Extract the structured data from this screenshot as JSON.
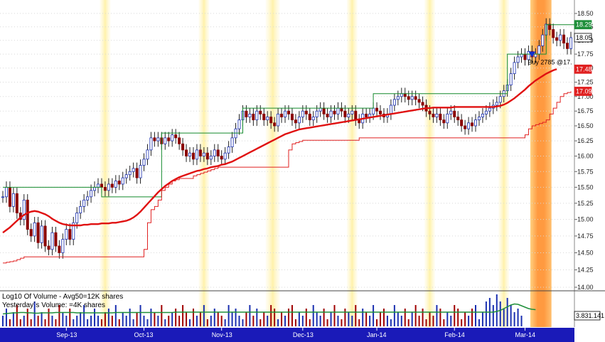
{
  "chart_data": {
    "type": "candlestick",
    "price_axis": {
      "scale": "log",
      "ylim": [
        14.0,
        18.62
      ],
      "ticks": [
        "18.50",
        "18.25",
        "18.00",
        "17.75",
        "17.50",
        "17.25",
        "17.00",
        "16.75",
        "16.50",
        "16.25",
        "16.00",
        "15.75",
        "15.50",
        "15.25",
        "15.00",
        "14.75",
        "14.50",
        "14.25",
        "14.00"
      ],
      "tick_values": [
        18.5,
        18.25,
        18.0,
        17.75,
        17.5,
        17.25,
        17.0,
        16.75,
        16.5,
        16.25,
        16.0,
        15.75,
        15.5,
        15.25,
        15.0,
        14.75,
        14.5,
        14.25,
        14.0
      ]
    },
    "months": [
      {
        "label": "Sep-13",
        "index": 18
      },
      {
        "label": "Oct-13",
        "index": 40
      },
      {
        "label": "Nov-13",
        "index": 62
      },
      {
        "label": "Dec-13",
        "index": 85
      },
      {
        "label": "Jan-14",
        "index": 106
      },
      {
        "label": "Feb-14",
        "index": 128
      },
      {
        "label": "Mar-14",
        "index": 148
      }
    ],
    "closes": [
      15.35,
      15.5,
      15.2,
      15.4,
      15.1,
      15.0,
      15.3,
      14.85,
      14.75,
      14.95,
      14.65,
      14.9,
      14.6,
      14.55,
      14.8,
      14.6,
      14.5,
      14.7,
      14.85,
      14.7,
      14.95,
      15.1,
      15.2,
      15.3,
      15.35,
      15.45,
      15.5,
      15.55,
      15.5,
      15.45,
      15.55,
      15.5,
      15.6,
      15.55,
      15.65,
      15.7,
      15.75,
      15.8,
      15.65,
      15.85,
      15.95,
      16.1,
      16.3,
      16.25,
      16.3,
      16.2,
      16.3,
      16.25,
      16.35,
      16.3,
      16.2,
      16.1,
      16.0,
      16.05,
      15.95,
      16.1,
      16.0,
      16.05,
      15.95,
      16.0,
      16.1,
      16.0,
      15.95,
      16.05,
      16.15,
      16.3,
      16.45,
      16.6,
      16.75,
      16.65,
      16.7,
      16.6,
      16.75,
      16.7,
      16.6,
      16.65,
      16.55,
      16.5,
      16.7,
      16.65,
      16.75,
      16.7,
      16.6,
      16.55,
      16.65,
      16.75,
      16.7,
      16.6,
      16.65,
      16.75,
      16.8,
      16.7,
      16.65,
      16.75,
      16.7,
      16.8,
      16.75,
      16.65,
      16.7,
      16.75,
      16.6,
      16.55,
      16.7,
      16.65,
      16.7,
      16.8,
      16.75,
      16.7,
      16.65,
      16.7,
      16.85,
      16.95,
      17.0,
      17.05,
      17.0,
      16.95,
      17.0,
      16.95,
      16.9,
      16.85,
      16.75,
      16.7,
      16.65,
      16.7,
      16.6,
      16.55,
      16.7,
      16.75,
      16.65,
      16.6,
      16.5,
      16.45,
      16.55,
      16.5,
      16.6,
      16.65,
      16.7,
      16.75,
      16.8,
      16.85,
      16.9,
      17.0,
      17.1,
      17.2,
      17.4,
      17.6,
      17.7,
      17.75,
      17.65,
      17.8,
      17.7,
      17.75,
      17.9,
      18.1,
      18.3,
      18.2,
      18.05,
      18.0,
      18.1,
      17.95,
      17.85,
      18.05
    ],
    "ma_red": [
      14.8,
      14.84,
      14.88,
      14.93,
      14.98,
      15.03,
      15.07,
      15.1,
      15.12,
      15.13,
      15.12,
      15.1,
      15.08,
      15.05,
      15.01,
      14.98,
      14.95,
      14.93,
      14.92,
      14.91,
      14.91,
      14.91,
      14.91,
      14.92,
      14.92,
      14.93,
      14.93,
      14.93,
      14.94,
      14.94,
      14.94,
      14.95,
      14.95,
      14.96,
      14.97,
      14.98,
      15.0,
      15.03,
      15.07,
      15.12,
      15.18,
      15.24,
      15.3,
      15.36,
      15.42,
      15.47,
      15.52,
      15.56,
      15.6,
      15.63,
      15.66,
      15.68,
      15.7,
      15.72,
      15.74,
      15.76,
      15.77,
      15.79,
      15.8,
      15.82,
      15.83,
      15.84,
      15.86,
      15.87,
      15.89,
      15.91,
      15.94,
      15.97,
      16.0,
      16.03,
      16.06,
      16.09,
      16.12,
      16.15,
      16.18,
      16.21,
      16.24,
      16.27,
      16.3,
      16.33,
      16.36,
      16.38,
      16.4,
      16.42,
      16.44,
      16.45,
      16.46,
      16.47,
      16.48,
      16.49,
      16.5,
      16.51,
      16.52,
      16.53,
      16.54,
      16.55,
      16.56,
      16.57,
      16.58,
      16.59,
      16.6,
      16.61,
      16.62,
      16.63,
      16.64,
      16.65,
      16.66,
      16.67,
      16.68,
      16.69,
      16.7,
      16.71,
      16.72,
      16.73,
      16.74,
      16.75,
      16.76,
      16.77,
      16.78,
      16.79,
      16.8,
      16.8,
      16.81,
      16.81,
      16.81,
      16.81,
      16.81,
      16.81,
      16.82,
      16.82,
      16.82,
      16.82,
      16.82,
      16.82,
      16.82,
      16.82,
      16.82,
      16.82,
      16.82,
      16.82,
      16.83,
      16.84,
      16.86,
      16.89,
      16.93,
      16.97,
      17.02,
      17.07,
      17.12,
      17.18,
      17.23,
      17.28,
      17.32,
      17.36,
      17.4,
      17.43,
      17.46,
      17.48
    ],
    "trail_green": [
      15.5,
      15.5,
      15.5,
      15.5,
      15.5,
      15.5,
      15.5,
      15.5,
      15.5,
      15.5,
      15.5,
      15.5,
      15.5,
      15.5,
      15.5,
      15.5,
      15.5,
      15.5,
      15.5,
      15.5,
      15.5,
      15.5,
      15.5,
      15.5,
      15.5,
      15.5,
      15.5,
      15.5,
      15.35,
      15.35,
      15.35,
      15.35,
      15.35,
      15.35,
      15.35,
      15.35,
      15.35,
      15.35,
      15.35,
      15.35,
      15.35,
      15.35,
      15.35,
      15.35,
      15.35,
      16.38,
      16.38,
      16.38,
      16.38,
      16.38,
      16.38,
      16.38,
      16.38,
      16.38,
      16.38,
      16.38,
      16.38,
      16.38,
      16.38,
      16.38,
      16.38,
      16.38,
      16.38,
      16.38,
      16.38,
      16.38,
      16.38,
      16.38,
      16.8,
      16.8,
      16.8,
      16.8,
      16.8,
      16.8,
      16.8,
      16.8,
      16.8,
      16.8,
      16.8,
      16.8,
      16.8,
      16.8,
      16.8,
      16.8,
      16.8,
      16.8,
      16.8,
      16.8,
      16.8,
      16.8,
      16.8,
      16.8,
      16.8,
      16.8,
      16.8,
      16.8,
      16.8,
      16.8,
      16.8,
      16.8,
      16.8,
      16.8,
      16.8,
      16.8,
      16.8,
      17.05,
      17.05,
      17.05,
      17.05,
      17.05,
      17.05,
      17.05,
      17.05,
      17.05,
      17.05,
      17.05,
      17.05,
      17.05,
      17.05,
      17.05,
      17.05,
      17.05,
      17.05,
      17.05,
      17.05,
      17.05,
      17.05,
      17.05,
      17.05,
      17.05,
      17.05,
      17.05,
      17.05,
      17.05,
      17.05,
      17.05,
      17.05,
      17.05,
      17.05,
      17.05,
      17.05,
      17.05,
      17.05,
      17.75,
      17.75,
      17.75,
      17.75,
      17.75,
      17.75,
      17.75,
      17.75,
      17.75,
      17.75,
      17.75,
      18.29,
      18.29,
      18.29,
      18.29,
      18.29,
      18.29,
      18.29,
      18.29,
      18.29,
      18.29,
      18.29
    ],
    "trail_lower_red": [
      14.35,
      14.36,
      14.37,
      14.38,
      14.4,
      14.42,
      14.44,
      14.44,
      14.44,
      14.44,
      14.44,
      14.44,
      14.44,
      14.44,
      14.44,
      14.44,
      14.44,
      14.44,
      14.44,
      14.44,
      14.44,
      14.44,
      14.44,
      14.44,
      14.44,
      14.44,
      14.44,
      14.44,
      14.44,
      14.44,
      14.44,
      14.44,
      14.44,
      14.44,
      14.44,
      14.44,
      14.44,
      14.44,
      14.44,
      14.44,
      14.55,
      14.95,
      15.15,
      15.2,
      15.3,
      15.45,
      15.5,
      15.55,
      15.6,
      15.62,
      15.64,
      15.64,
      15.64,
      15.64,
      15.68,
      15.7,
      15.72,
      15.74,
      15.76,
      15.78,
      15.8,
      15.82,
      15.82,
      15.82,
      15.82,
      15.82,
      15.82,
      15.82,
      15.82,
      15.82,
      15.82,
      15.82,
      15.82,
      15.82,
      15.82,
      15.82,
      15.82,
      15.82,
      15.82,
      15.82,
      15.82,
      16.1,
      16.2,
      16.22,
      16.24,
      16.26,
      16.26,
      16.26,
      16.26,
      16.26,
      16.26,
      16.26,
      16.26,
      16.26,
      16.26,
      16.26,
      16.26,
      16.26,
      16.26,
      16.26,
      16.26,
      16.3,
      16.3,
      16.3,
      16.3,
      16.3,
      16.3,
      16.3,
      16.3,
      16.3,
      16.3,
      16.3,
      16.3,
      16.3,
      16.3,
      16.3,
      16.3,
      16.3,
      16.3,
      16.3,
      16.3,
      16.3,
      16.3,
      16.3,
      16.3,
      16.3,
      16.3,
      16.3,
      16.3,
      16.3,
      16.3,
      16.3,
      16.3,
      16.3,
      16.3,
      16.3,
      16.3,
      16.3,
      16.3,
      16.3,
      16.3,
      16.3,
      16.3,
      16.3,
      16.3,
      16.3,
      16.3,
      16.3,
      16.35,
      16.45,
      16.5,
      16.52,
      16.54,
      16.56,
      16.6,
      16.7,
      16.8,
      16.9,
      17.0,
      17.05,
      17.07,
      17.09
    ],
    "highlight_bands": [
      {
        "start": 28,
        "end": 30,
        "intensity": "light"
      },
      {
        "start": 56,
        "end": 58,
        "intensity": "light"
      },
      {
        "start": 75,
        "end": 78,
        "intensity": "light"
      },
      {
        "start": 98,
        "end": 100,
        "intensity": "light"
      },
      {
        "start": 120,
        "end": 122,
        "intensity": "light"
      },
      {
        "start": 141,
        "end": 143,
        "intensity": "light"
      },
      {
        "start": 150,
        "end": 155,
        "intensity": "strong"
      }
    ],
    "price_badges": [
      {
        "value": 18.29,
        "text": "18.29",
        "color": "#1f8f3a"
      },
      {
        "value": 18.05,
        "text": "18.05",
        "color": "#ffffff",
        "text_color": "#000000"
      },
      {
        "value": 17.48,
        "text": "17.48",
        "color": "#e02020"
      },
      {
        "value": 17.09,
        "text": "17.09",
        "color": "#e02020"
      }
    ],
    "annotation": {
      "text": "Buy 2785 @17.",
      "index": 150,
      "value": 17.72
    },
    "volume_panel": {
      "lines": [
        "Log10 Of Volume - Avg50=12K shares",
        "Yesterday´s Volume: =4K shares"
      ],
      "readout": "3.831.141",
      "bars": [
        3,
        5,
        2,
        4,
        6,
        2,
        3,
        5,
        2,
        7,
        3,
        4,
        2,
        5,
        3,
        2,
        6,
        4,
        3,
        5,
        2,
        3,
        4,
        6,
        2,
        3,
        5,
        3,
        2,
        4,
        5,
        3,
        6,
        2,
        4,
        3,
        5,
        2,
        4,
        6,
        3,
        2,
        5,
        4,
        3,
        6,
        2,
        3,
        4,
        5,
        3,
        6,
        4,
        2,
        5,
        3,
        4,
        6,
        2,
        3,
        5,
        4,
        3,
        2,
        6,
        4,
        5,
        3,
        2,
        4,
        6,
        3,
        5,
        2,
        4,
        3,
        6,
        5,
        2,
        4,
        3,
        5,
        6,
        2,
        4,
        3,
        5,
        2,
        6,
        4,
        3,
        5,
        2,
        4,
        6,
        3,
        2,
        5,
        4,
        3,
        6,
        2,
        5,
        4,
        3,
        6,
        2,
        4,
        5,
        3,
        2,
        6,
        4,
        3,
        5,
        2,
        4,
        6,
        3,
        5,
        2,
        4,
        3,
        6,
        5,
        2,
        4,
        3,
        6,
        5,
        2,
        4,
        3,
        5,
        6,
        2,
        4,
        7,
        8,
        6,
        9,
        7,
        5,
        8,
        6,
        4,
        5,
        3
      ],
      "avg": [
        3.5,
        3.6,
        3.7,
        3.8,
        3.8,
        3.9,
        3.9,
        3.8,
        3.8,
        3.7,
        3.7,
        3.8,
        3.8,
        3.8,
        3.8,
        3.9,
        3.9,
        3.9,
        3.9,
        3.9,
        3.9,
        3.8,
        3.8,
        3.8,
        3.8,
        3.8,
        3.8,
        3.8,
        3.8,
        3.8,
        3.8,
        3.8,
        3.9,
        3.9,
        3.9,
        3.9,
        3.9,
        3.9,
        3.9,
        3.9,
        3.9,
        3.9,
        3.9,
        3.9,
        3.9,
        3.9,
        3.9,
        3.9,
        3.9,
        4.0,
        4.0,
        4.0,
        4.0,
        4.0,
        4.0,
        4.0,
        4.0,
        4.0,
        4.0,
        4.0,
        4.0,
        4.0,
        4.0,
        4.0,
        4.0,
        4.0,
        4.0,
        4.0,
        4.0,
        4.0,
        4.0,
        4.0,
        4.0,
        4.0,
        4.0,
        4.0,
        4.0,
        4.0,
        4.0,
        4.0,
        4.0,
        4.0,
        4.0,
        4.0,
        4.0,
        4.0,
        4.0,
        4.0,
        4.0,
        4.0,
        4.0,
        4.0,
        4.0,
        4.0,
        4.0,
        4.0,
        4.0,
        4.0,
        4.0,
        4.0,
        4.0,
        4.0,
        4.0,
        4.0,
        4.0,
        4.0,
        4.0,
        4.0,
        4.0,
        4.0,
        4.0,
        4.0,
        4.0,
        4.0,
        4.0,
        4.0,
        4.0,
        4.0,
        4.0,
        4.0,
        4.0,
        4.0,
        4.0,
        4.0,
        4.0,
        4.0,
        4.0,
        4.0,
        4.0,
        4.0,
        4.0,
        4.0,
        4.0,
        4.0,
        4.0,
        4.0,
        4.0,
        4.0,
        4.0,
        4.0,
        4.2,
        4.5,
        5.0,
        5.5,
        6.0,
        6.3,
        6.2,
        5.8,
        5.4,
        5.0,
        4.8,
        4.7
      ]
    }
  }
}
